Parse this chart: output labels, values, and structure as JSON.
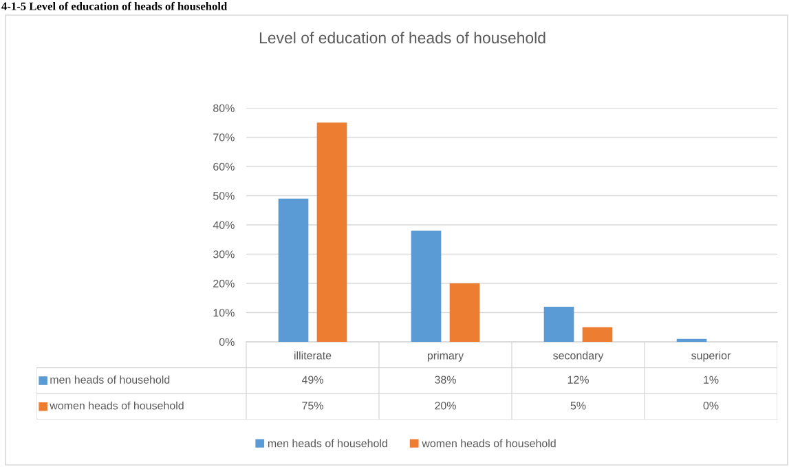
{
  "chart_data": {
    "type": "bar",
    "title": "Level of education of heads of household",
    "annotations": [
      "4-1-5 Level of education of heads of household"
    ],
    "categories": [
      "illiterate",
      "primary",
      "secondary",
      "superior"
    ],
    "series": [
      {
        "name": "men heads of household",
        "color": "#5b9bd5",
        "values": [
          49,
          38,
          12,
          1
        ],
        "value_labels": [
          "49%",
          "38%",
          "12%",
          "1%"
        ]
      },
      {
        "name": "women heads of household",
        "color": "#ed7d31",
        "values": [
          75,
          20,
          5,
          0
        ],
        "value_labels": [
          "75%",
          "20%",
          "5%",
          "0%"
        ]
      }
    ],
    "ylim": [
      0,
      80
    ],
    "yticks": [
      {
        "value": 0,
        "label": "0%"
      },
      {
        "value": 10,
        "label": "10%"
      },
      {
        "value": 20,
        "label": "20%"
      },
      {
        "value": 30,
        "label": "30%"
      },
      {
        "value": 40,
        "label": "40%"
      },
      {
        "value": 50,
        "label": "50%"
      },
      {
        "value": 60,
        "label": "60%"
      },
      {
        "value": 70,
        "label": "70%"
      },
      {
        "value": 80,
        "label": "80%"
      }
    ],
    "grid": "y",
    "legend": "bottom"
  }
}
